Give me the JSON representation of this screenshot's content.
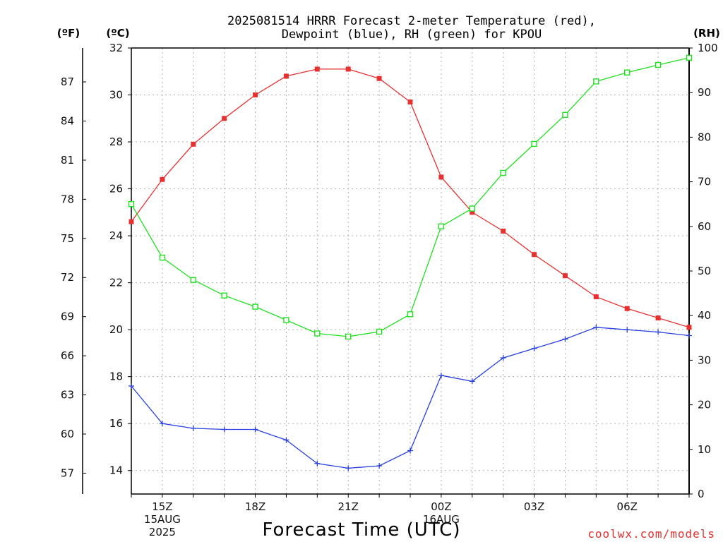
{
  "chart_data": {
    "type": "line",
    "title_line1": "2025081514 HRRR Forecast 2-meter Temperature (red),",
    "title_line2": "Dewpoint (blue), RH (green) for KPOU",
    "xlabel": "Forecast Time (UTC)",
    "credit": "coolwx.com/models",
    "units": {
      "fahrenheit": "(ºF)",
      "celsius": "(ºC)",
      "rh": "(RH)"
    },
    "x": [
      "14Z",
      "15Z",
      "16Z",
      "17Z",
      "18Z",
      "19Z",
      "20Z",
      "21Z",
      "22Z",
      "23Z",
      "00Z",
      "01Z",
      "02Z",
      "03Z",
      "04Z",
      "05Z",
      "06Z",
      "07Z",
      "08Z"
    ],
    "x_tick_labels": [
      {
        "hour": 1,
        "lines": [
          "15Z",
          "15AUG",
          "2025"
        ]
      },
      {
        "hour": 4,
        "lines": [
          "18Z"
        ]
      },
      {
        "hour": 7,
        "lines": [
          "21Z"
        ]
      },
      {
        "hour": 10,
        "lines": [
          "00Z",
          "16AUG"
        ]
      },
      {
        "hour": 13,
        "lines": [
          "03Z"
        ]
      },
      {
        "hour": 16,
        "lines": [
          "06Z"
        ]
      }
    ],
    "celsius_axis": {
      "range": [
        13,
        32
      ],
      "ticks": [
        14,
        16,
        18,
        20,
        22,
        24,
        26,
        28,
        30,
        32
      ]
    },
    "fahrenheit_axis": {
      "ticks": [
        57,
        60,
        63,
        66,
        69,
        72,
        75,
        78,
        81,
        84,
        87
      ]
    },
    "rh_axis": {
      "range": [
        0,
        100
      ],
      "ticks": [
        0,
        10,
        20,
        30,
        40,
        50,
        60,
        70,
        80,
        90,
        100
      ]
    },
    "grid": true,
    "series": [
      {
        "name": "Temperature",
        "axis": "celsius",
        "color": "#e83030",
        "marker": "filled-square",
        "values": [
          24.6,
          26.4,
          27.9,
          29.0,
          30.0,
          30.8,
          31.1,
          31.1,
          30.7,
          29.7,
          26.5,
          25.0,
          24.2,
          23.2,
          22.3,
          21.4,
          20.9,
          20.5,
          20.1
        ]
      },
      {
        "name": "Dewpoint",
        "axis": "celsius",
        "color": "#2840e0",
        "marker": "plus",
        "values": [
          17.6,
          16.0,
          15.8,
          15.75,
          15.75,
          15.3,
          14.3,
          14.1,
          14.2,
          14.85,
          18.05,
          17.8,
          18.8,
          19.2,
          19.6,
          20.1,
          20.0,
          19.9,
          19.75
        ]
      },
      {
        "name": "RH",
        "axis": "rh",
        "color": "#20e020",
        "marker": "open-square",
        "values": [
          65,
          53,
          48,
          44.5,
          42,
          39,
          36,
          35.3,
          36.4,
          40.3,
          60,
          64,
          72,
          78.5,
          85,
          92.5,
          94.5,
          96.2,
          97.8
        ]
      }
    ]
  }
}
